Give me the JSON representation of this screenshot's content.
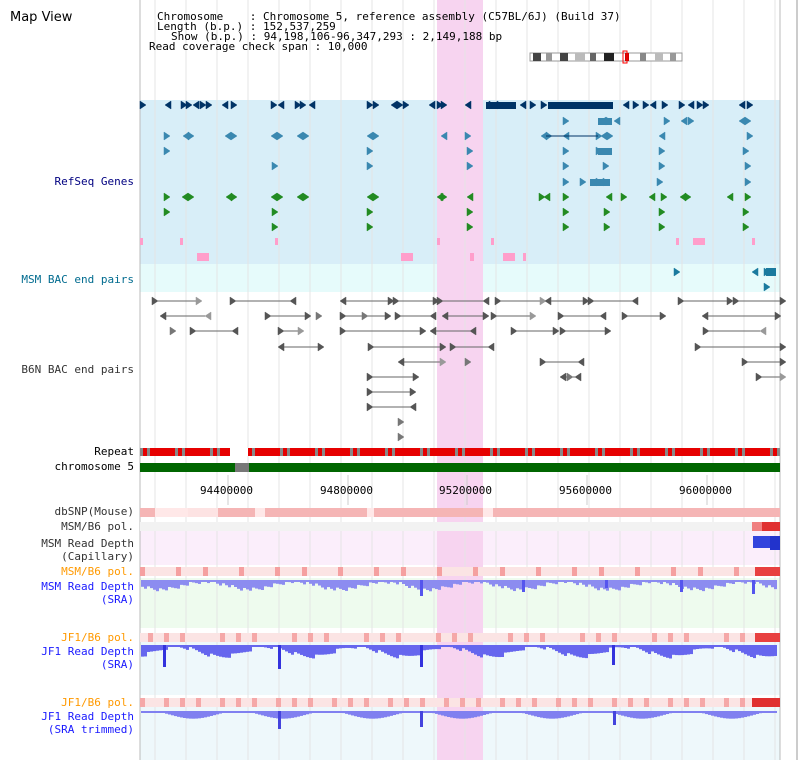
{
  "app": {
    "title": "Map View"
  },
  "info": {
    "chromosome_line": "Chromosome    : Chromosome 5, reference assembly (C57BL/6J) (Build 37)",
    "length_line": "Length (b.p.) : 152,537,259",
    "show_line": "Show (b.p.) : 94,198,106-96,347,293 : 2,149,188 bp",
    "coverage_line": "Read coverage check span : 10,000"
  },
  "tracks": {
    "refseq": "RefSeq Genes",
    "msm_bac": "MSM BAC end pairs",
    "b6n_bac": "B6N BAC end pairs",
    "repeat": "Repeat",
    "chromosome": "chromosome 5",
    "dbsnp": "dbSNP(Mouse)",
    "msm_b6_pol_1": "MSM/B6 pol.",
    "msm_depth_cap": "MSM Read Depth",
    "msm_depth_cap_sub": "(Capillary)",
    "msm_b6_pol_2": "MSM/B6 pol.",
    "msm_depth_sra": "MSM Read Depth",
    "msm_depth_sra_sub": "(SRA)",
    "jf1_b6_pol_1": "JF1/B6 pol.",
    "jf1_depth_sra": "JF1 Read Depth",
    "jf1_depth_sra_sub": "(SRA)",
    "jf1_b6_pol_2": "JF1/B6 pol.",
    "jf1_depth_trim": "JF1 Read Depth",
    "jf1_depth_trim_sub": "(SRA trimmed)"
  },
  "axis": {
    "ticks": [
      "94400000",
      "94800000",
      "95200000",
      "95600000",
      "96000000"
    ]
  },
  "colors": {
    "refseq_bg": "#d8eef8",
    "msm_bac_bg": "#e6fbfb",
    "highlight": "#f7d4f0",
    "chrom_green": "#006600",
    "repeat_red": "#e60000"
  }
}
